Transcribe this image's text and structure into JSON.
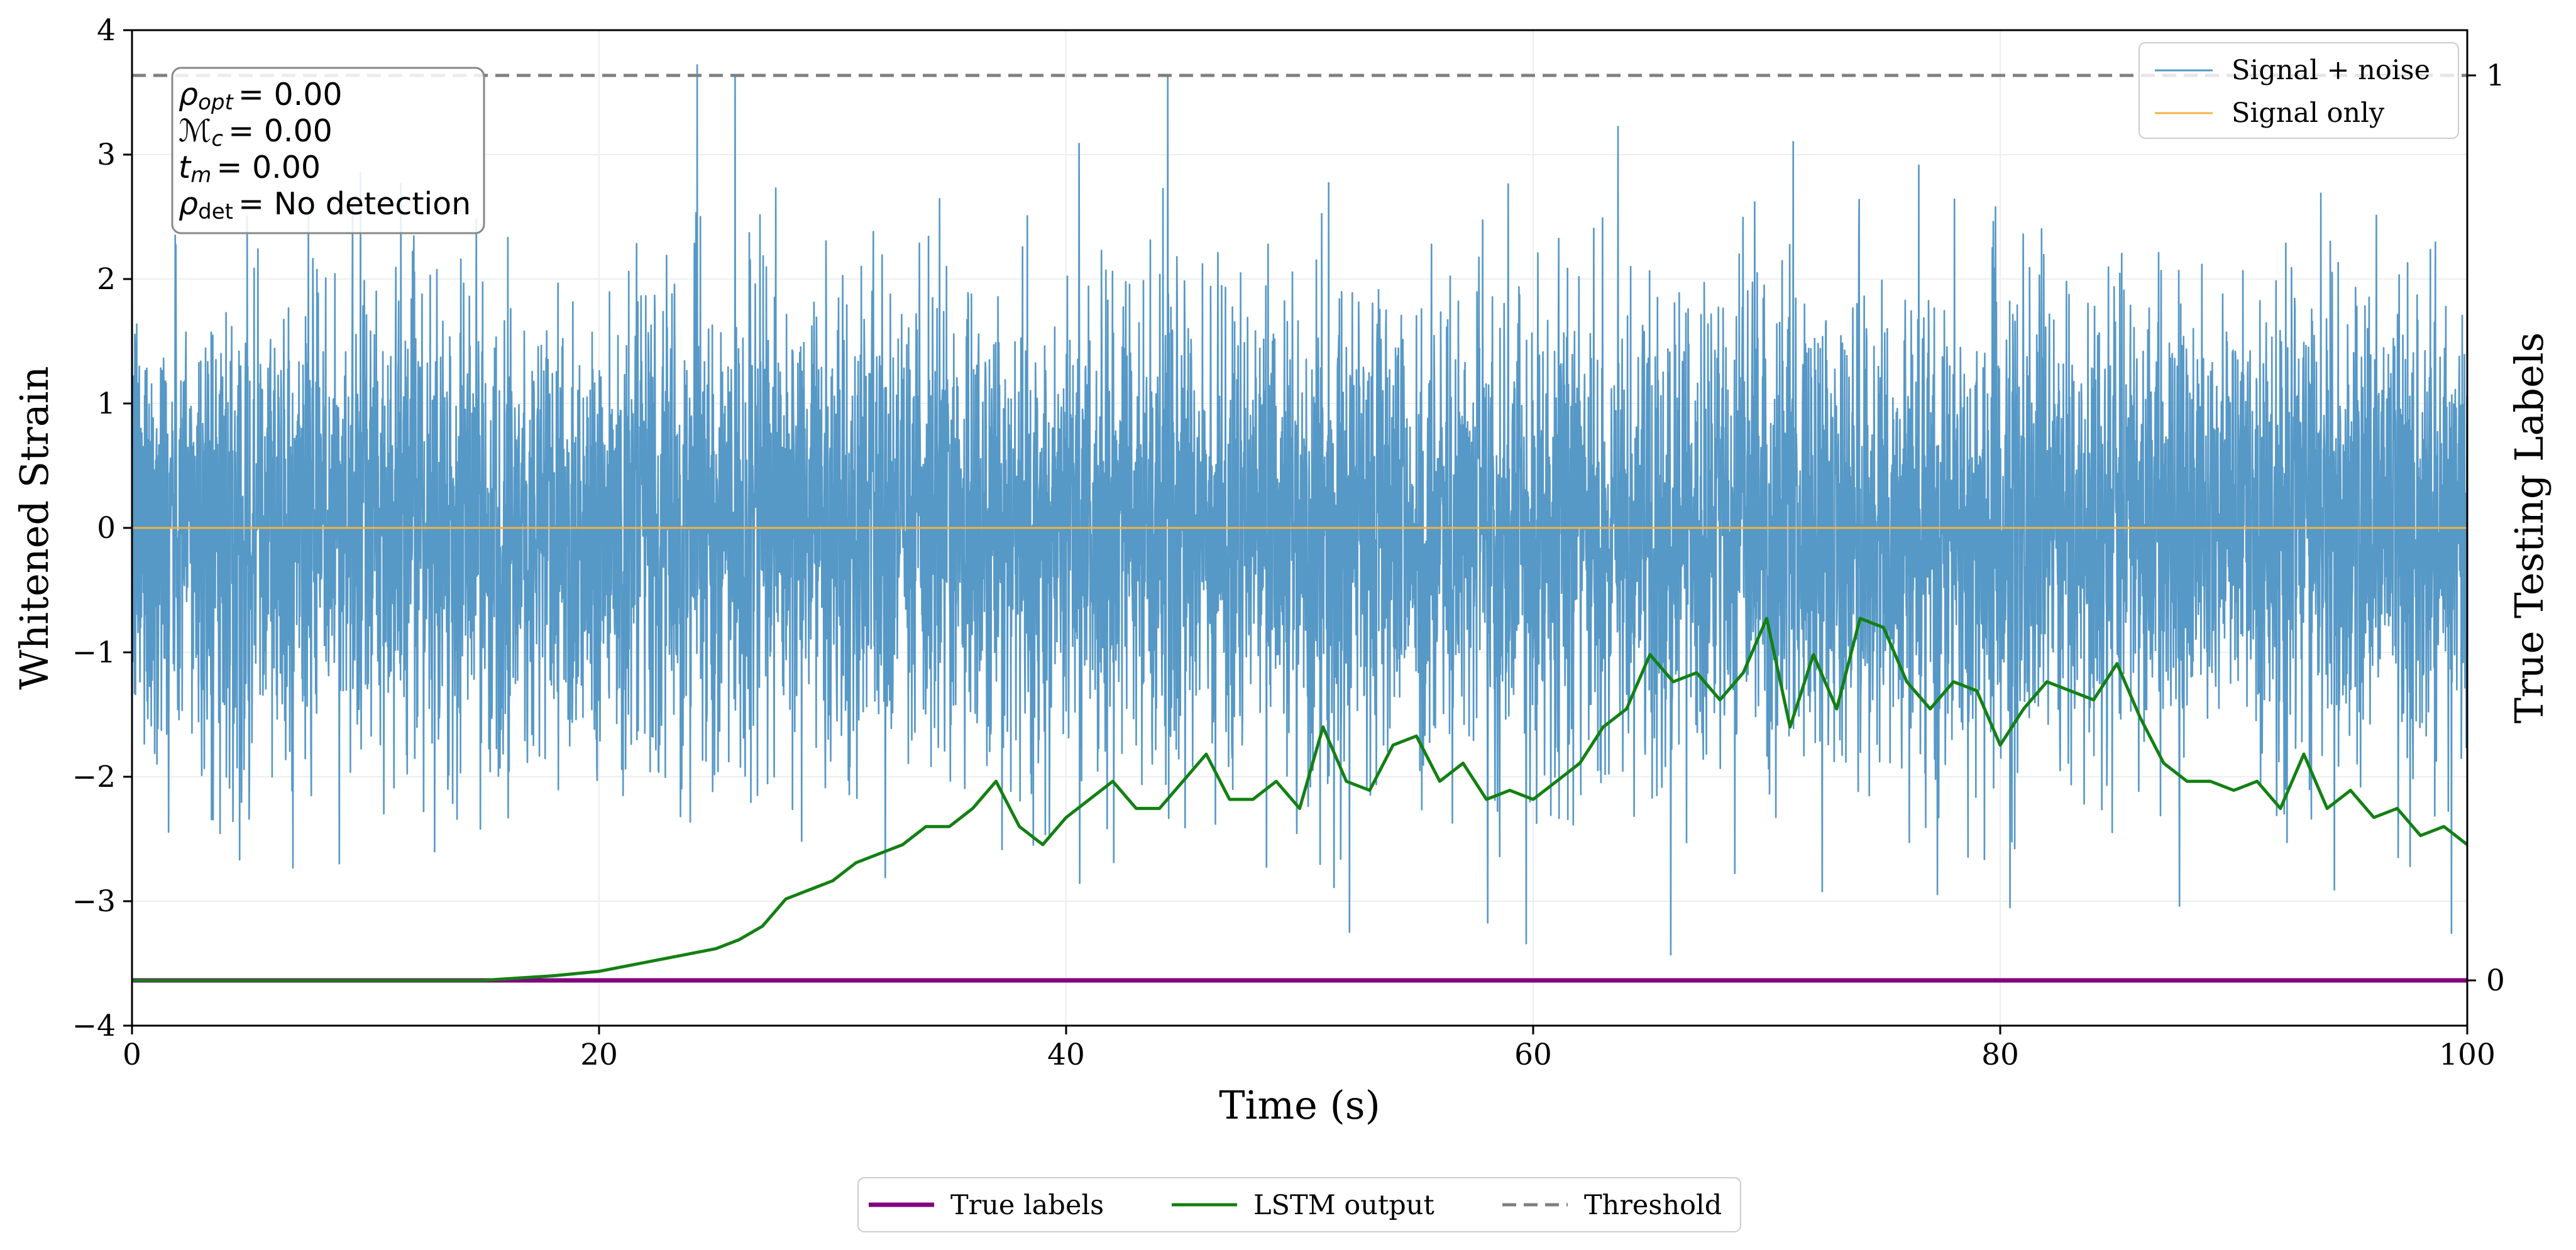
{
  "chart_data": {
    "type": "line",
    "xlabel": "Time (s)",
    "ylabel": "Whitened Strain",
    "y2label": "True Testing Labels",
    "xlim": [
      0,
      100
    ],
    "ylim": [
      -4,
      4
    ],
    "y2lim": [
      -0.05,
      1.05
    ],
    "xticks": [
      0,
      20,
      40,
      60,
      80,
      100
    ],
    "yticks": [
      -4,
      -3,
      -2,
      -1,
      0,
      1,
      2,
      3,
      4
    ],
    "y2ticks": [
      0,
      1
    ],
    "grid": true,
    "series": [
      {
        "name": "Signal + noise",
        "axis": "left",
        "color": "#5698c6",
        "description_values": "noise ±~2 with spikes to ±3.7"
      },
      {
        "name": "Signal only",
        "axis": "left",
        "color": "#f2b347",
        "x": [
          0,
          100
        ],
        "y": [
          0,
          0
        ]
      },
      {
        "name": "True labels",
        "axis": "right",
        "color": "#800080",
        "x": [
          0,
          100
        ],
        "y": [
          0,
          0
        ]
      },
      {
        "name": "LSTM output",
        "axis": "right",
        "color": "#138013",
        "x": [
          0,
          15,
          18,
          20,
          22,
          24,
          25,
          26,
          27,
          28,
          29,
          30,
          31,
          32,
          33,
          34,
          35,
          36,
          37,
          38,
          39,
          40,
          41,
          42,
          43,
          44,
          45,
          46,
          47,
          48,
          49,
          50,
          51,
          52,
          53,
          54,
          55,
          56,
          57,
          58,
          59,
          60,
          61,
          62,
          63,
          64,
          65,
          66,
          67,
          68,
          69,
          70,
          71,
          72,
          73,
          74,
          75,
          76,
          77,
          78,
          79,
          80,
          81,
          82,
          83,
          84,
          85,
          86,
          87,
          88,
          89,
          90,
          91,
          92,
          93,
          94,
          95,
          96,
          97,
          98,
          99,
          100
        ],
        "y": [
          0,
          0.0,
          0.005,
          0.01,
          0.02,
          0.03,
          0.035,
          0.045,
          0.06,
          0.09,
          0.1,
          0.11,
          0.13,
          0.14,
          0.15,
          0.17,
          0.17,
          0.19,
          0.22,
          0.17,
          0.15,
          0.18,
          0.2,
          0.22,
          0.19,
          0.19,
          0.22,
          0.25,
          0.2,
          0.2,
          0.22,
          0.19,
          0.28,
          0.22,
          0.21,
          0.26,
          0.27,
          0.22,
          0.24,
          0.2,
          0.21,
          0.2,
          0.22,
          0.24,
          0.28,
          0.3,
          0.36,
          0.33,
          0.34,
          0.31,
          0.34,
          0.4,
          0.28,
          0.36,
          0.3,
          0.4,
          0.39,
          0.33,
          0.3,
          0.33,
          0.32,
          0.26,
          0.3,
          0.33,
          0.32,
          0.31,
          0.35,
          0.29,
          0.24,
          0.22,
          0.22,
          0.21,
          0.22,
          0.19,
          0.25,
          0.19,
          0.21,
          0.18,
          0.19,
          0.16,
          0.17,
          0.15
        ]
      },
      {
        "name": "Threshold",
        "axis": "right",
        "color": "#7f7f7f",
        "style": "dashed",
        "x": [
          0,
          100
        ],
        "y": [
          1,
          1
        ]
      }
    ],
    "legend_upper": {
      "placement": "top-right",
      "entries": [
        "Signal + noise",
        "Signal only"
      ]
    },
    "legend_lower": {
      "placement": "bottom-center",
      "entries": [
        "True labels",
        "LSTM output",
        "Threshold"
      ]
    },
    "annotation": {
      "placement": "top-left",
      "lines": [
        {
          "sym": "ρ",
          "sub": "opt",
          "value": "= 0.00"
        },
        {
          "sym": "ℳ",
          "sub": "c",
          "value": "= 0.00"
        },
        {
          "sym": "t",
          "sub": "m",
          "value": "= 0.00"
        },
        {
          "sym": "ρ",
          "sub": "det",
          "value": "= No detection"
        }
      ]
    }
  }
}
